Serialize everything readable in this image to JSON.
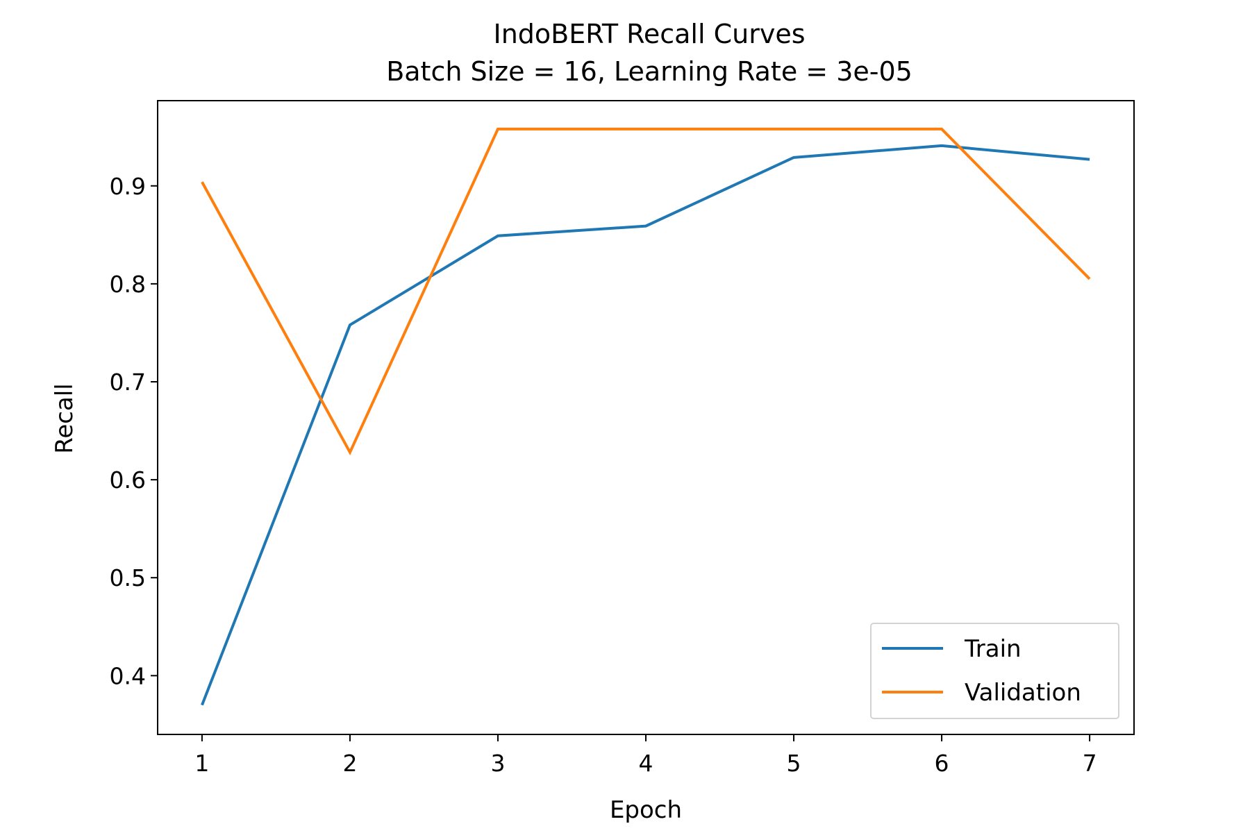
{
  "chart_data": {
    "type": "line",
    "title": "IndoBERT Recall Curves",
    "subtitle": "Batch Size = 16, Learning Rate = 3e-05",
    "xlabel": "Epoch",
    "ylabel": "Recall",
    "x": [
      1,
      2,
      3,
      4,
      5,
      6,
      7
    ],
    "xlim": [
      0.7,
      7.3
    ],
    "ylim": [
      0.34,
      0.987
    ],
    "xticks": [
      1,
      2,
      3,
      4,
      5,
      6,
      7
    ],
    "yticks": [
      0.4,
      0.5,
      0.6,
      0.7,
      0.8,
      0.9
    ],
    "ytick_labels": [
      "0.4",
      "0.5",
      "0.6",
      "0.7",
      "0.8",
      "0.9"
    ],
    "grid": false,
    "legend_position": "lower-right",
    "series": [
      {
        "name": "Train",
        "color": "#1f77b4",
        "values": [
          0.37,
          0.758,
          0.849,
          0.859,
          0.929,
          0.941,
          0.927
        ]
      },
      {
        "name": "Validation",
        "color": "#ff7f0e",
        "values": [
          0.904,
          0.628,
          0.958,
          0.958,
          0.958,
          0.958,
          0.805
        ]
      }
    ]
  }
}
